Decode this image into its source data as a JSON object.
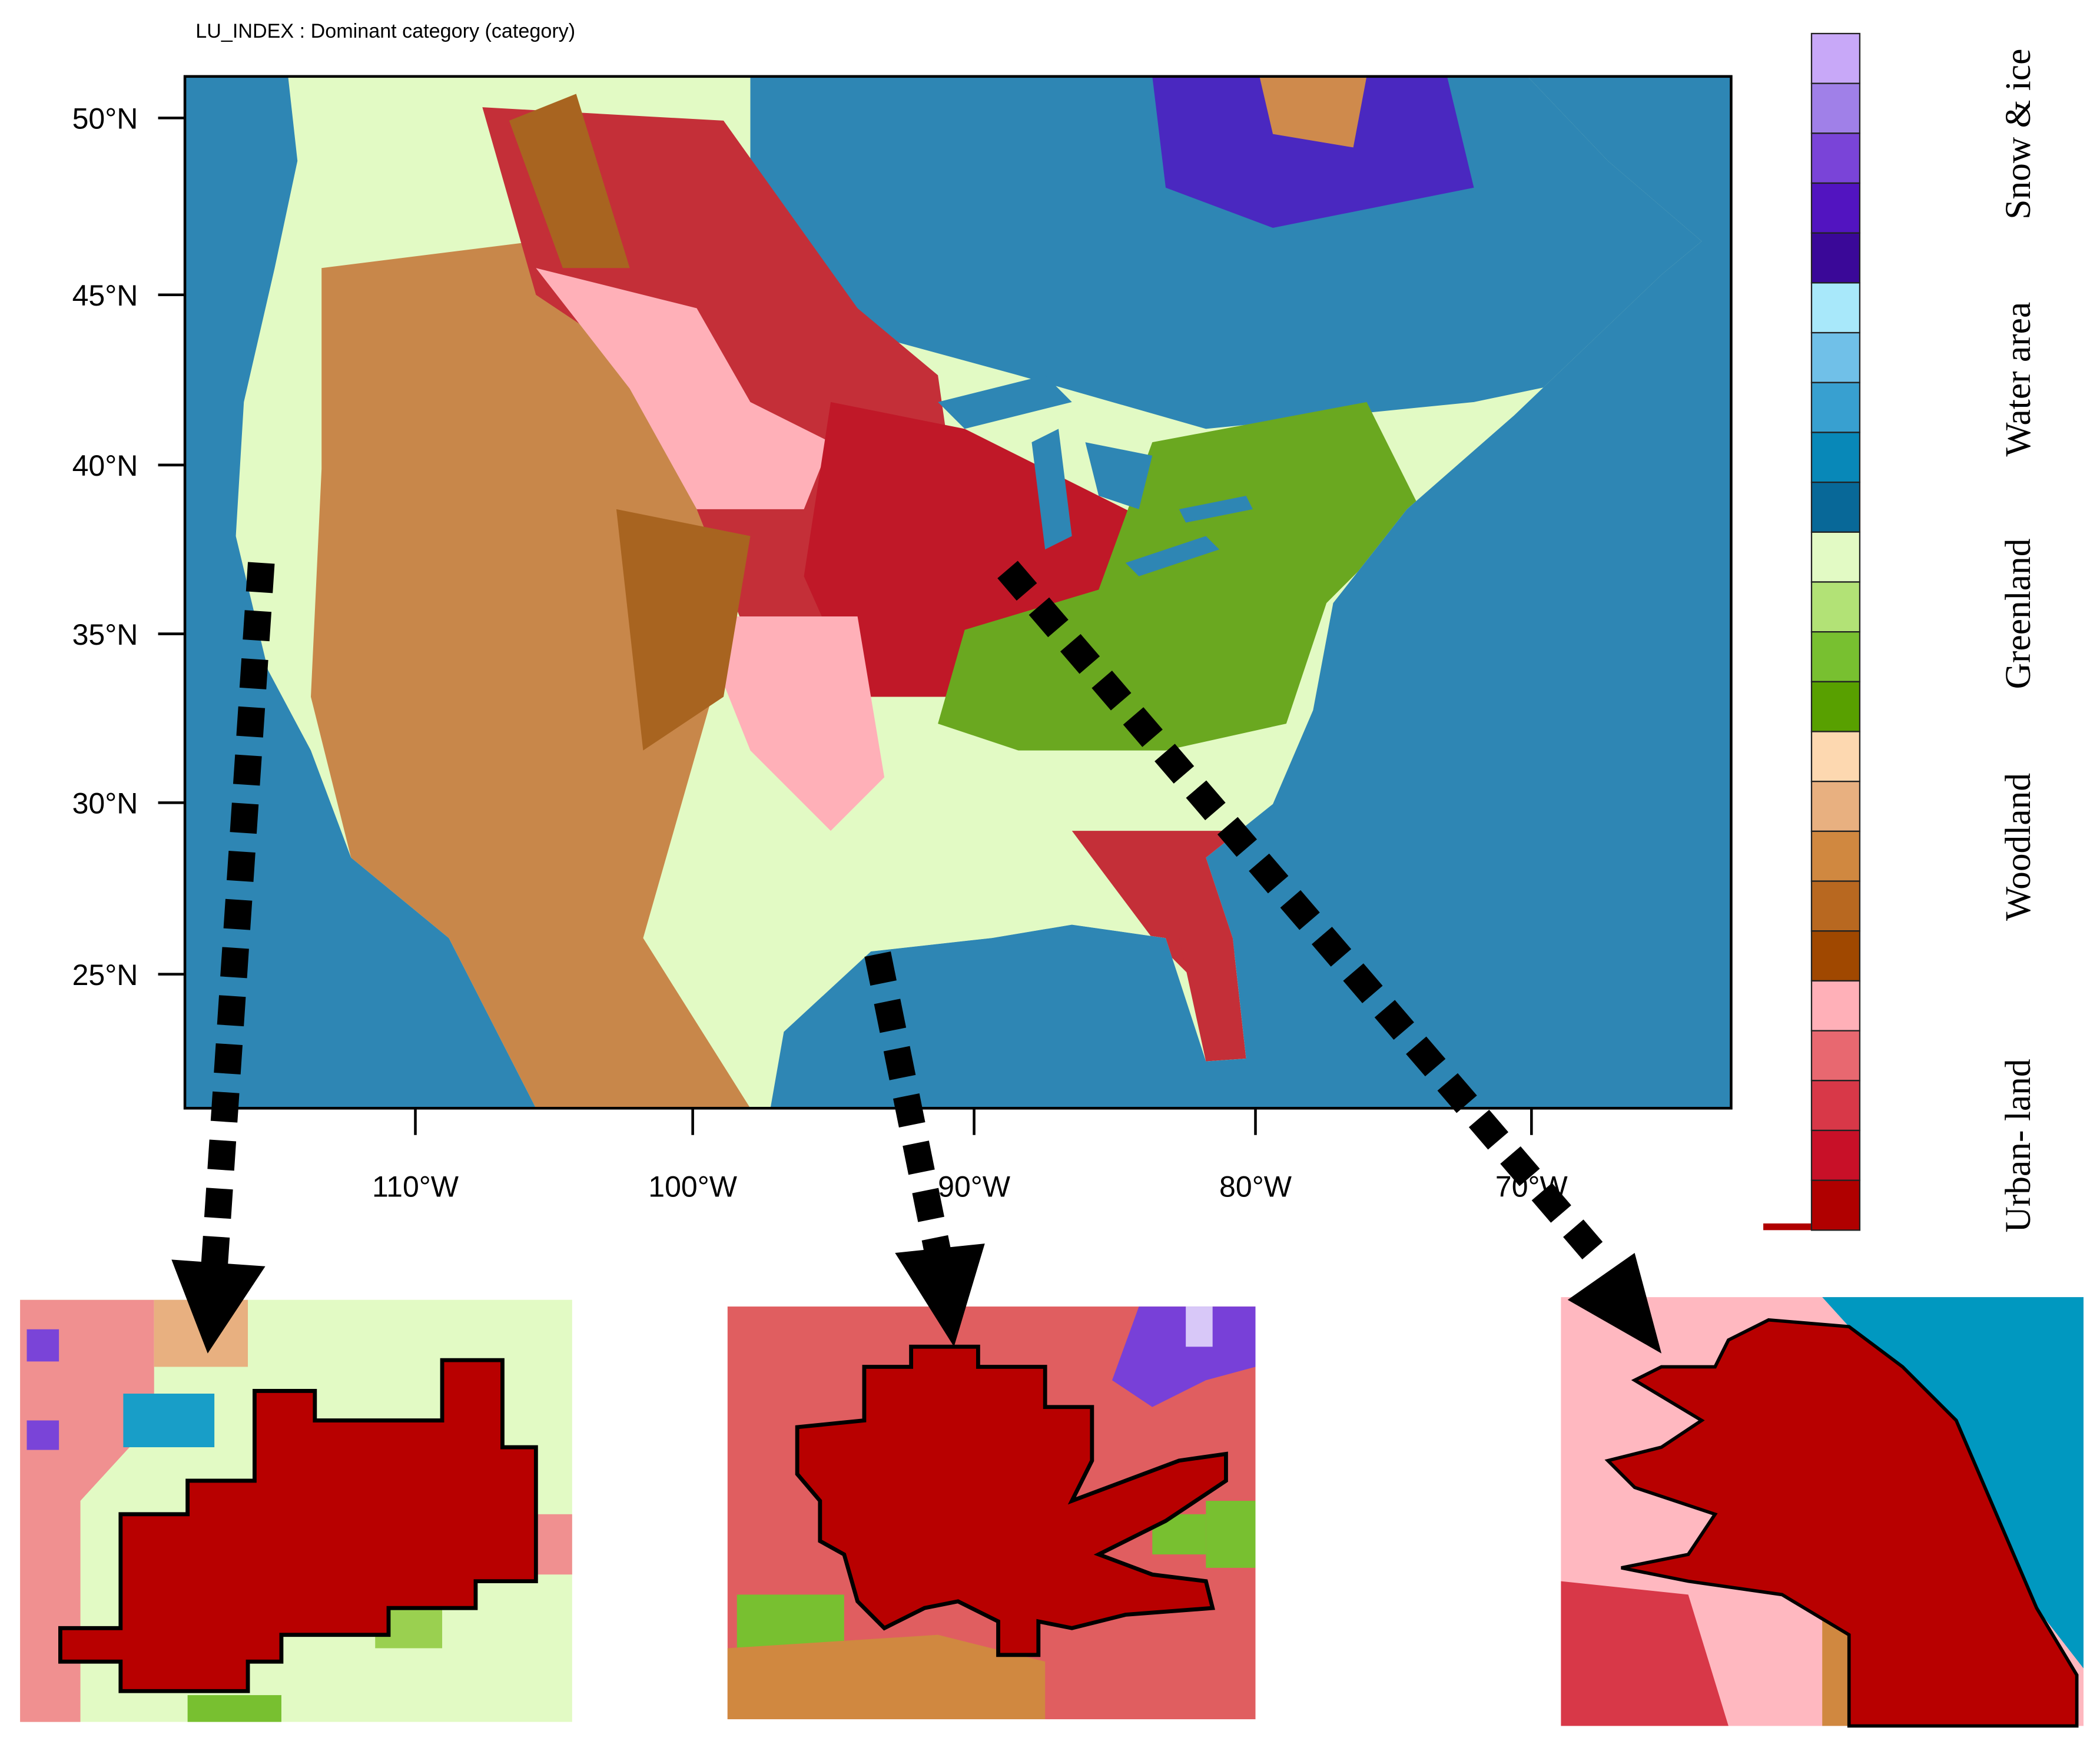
{
  "title": "LU_INDEX : Dominant category   (category)",
  "lat_labels": [
    "50°N",
    "45°N",
    "40°N",
    "35°N",
    "30°N",
    "25°N"
  ],
  "lon_labels": [
    "110°W",
    "100°W",
    "90°W",
    "80°W",
    "70°W"
  ],
  "legend_labels": [
    "Snow & ice",
    "Water area",
    "Greenland",
    "Woodland",
    "Urban- land"
  ],
  "colorbar": [
    "#c8a8f8",
    "#a080e8",
    "#7a44d8",
    "#5214c0",
    "#3a0898",
    "#a8e8fa",
    "#70c0e8",
    "#38a0d0",
    "#0888b8",
    "#086898",
    "#e2fac4",
    "#b2e276",
    "#78c030",
    "#58a000",
    "#fdd8b0",
    "#e8b080",
    "#d08840",
    "#b86820",
    "#a04800",
    "#ffb0b8",
    "#e86870",
    "#d83848",
    "#c81028",
    "#b00000"
  ]
}
